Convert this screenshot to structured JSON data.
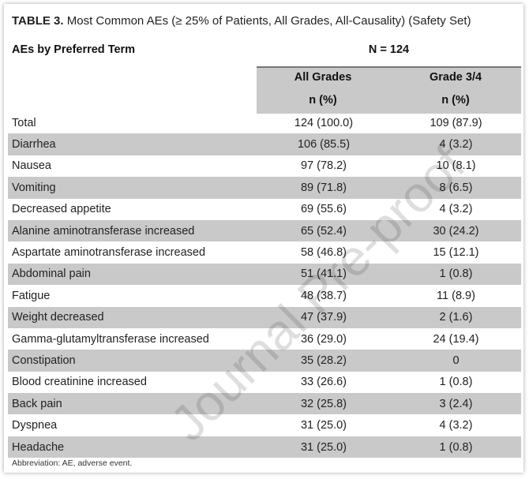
{
  "title_prefix": "TABLE 3.",
  "title_text": " Most Common AEs (≥ 25% of Patients, All Grades, All-Causality) (Safety Set)",
  "header": {
    "term": "AEs by Preferred Term",
    "n": "N = 124",
    "col1": "All Grades",
    "col2": "Grade 3/4",
    "unit1": "n (%)",
    "unit2": "n (%)"
  },
  "rows": [
    {
      "term": "Total",
      "all": "124 (100.0)",
      "g34": "109 (87.9)"
    },
    {
      "term": "Diarrhea",
      "all": "106 (85.5)",
      "g34": "4 (3.2)"
    },
    {
      "term": "Nausea",
      "all": "97 (78.2)",
      "g34": "10 (8.1)"
    },
    {
      "term": "Vomiting",
      "all": "89 (71.8)",
      "g34": "8 (6.5)"
    },
    {
      "term": "Decreased appetite",
      "all": "69 (55.6)",
      "g34": "4 (3.2)"
    },
    {
      "term": "Alanine aminotransferase increased",
      "all": "65 (52.4)",
      "g34": "30 (24.2)"
    },
    {
      "term": "Aspartate aminotransferase increased",
      "all": "58 (46.8)",
      "g34": "15 (12.1)"
    },
    {
      "term": "Abdominal pain",
      "all": "51 (41.1)",
      "g34": "1 (0.8)"
    },
    {
      "term": "Fatigue",
      "all": "48 (38.7)",
      "g34": "11 (8.9)"
    },
    {
      "term": "Weight decreased",
      "all": "47 (37.9)",
      "g34": "2 (1.6)"
    },
    {
      "term": "Gamma-glutamyltransferase increased",
      "all": "36 (29.0)",
      "g34": "24 (19.4)"
    },
    {
      "term": "Constipation",
      "all": "35 (28.2)",
      "g34": "0"
    },
    {
      "term": "Blood creatinine increased",
      "all": "33 (26.6)",
      "g34": "1 (0.8)"
    },
    {
      "term": "Back pain",
      "all": "32 (25.8)",
      "g34": "3 (2.4)"
    },
    {
      "term": "Dyspnea",
      "all": "31 (25.0)",
      "g34": "4 (3.2)"
    },
    {
      "term": "Headache",
      "all": "31 (25.0)",
      "g34": "1 (0.8)"
    }
  ],
  "footnote": "Abbreviation: AE, adverse event.",
  "watermark": "Journal Pre-proof"
}
